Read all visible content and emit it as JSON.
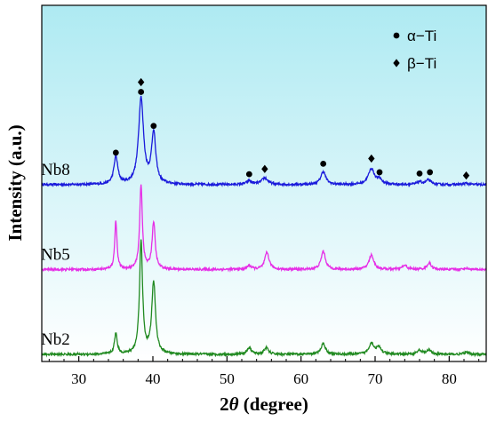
{
  "chart_data": {
    "type": "line",
    "title": "",
    "xlabel_prefix": "2",
    "xlabel_symbol": "θ",
    "xlabel_suffix": " (degree)",
    "ylabel": "Intensity (a.u.)",
    "xlim": [
      25,
      85
    ],
    "xticks": [
      30,
      40,
      50,
      60,
      70,
      80
    ],
    "ytick_labels": false,
    "legend": {
      "placement": "top-right",
      "entries": [
        {
          "marker": "circle",
          "label": "α−Ti"
        },
        {
          "marker": "diamond",
          "label": "β−Ti"
        }
      ]
    },
    "background_gradient": [
      "#aeeaf2",
      "#ffffff"
    ],
    "series": [
      {
        "name": "Nb8",
        "color": "#1a1adb",
        "offset": 2.6,
        "peaks": [
          {
            "x": 35.0,
            "h": 0.42,
            "w": 0.32
          },
          {
            "x": 38.4,
            "h": 1.32,
            "w": 0.4
          },
          {
            "x": 40.1,
            "h": 0.78,
            "w": 0.34
          },
          {
            "x": 53.0,
            "h": 0.06,
            "w": 0.4
          },
          {
            "x": 55.1,
            "h": 0.1,
            "w": 0.5
          },
          {
            "x": 63.0,
            "h": 0.2,
            "w": 0.4
          },
          {
            "x": 69.5,
            "h": 0.24,
            "w": 0.5
          },
          {
            "x": 70.6,
            "h": 0.07,
            "w": 0.4
          },
          {
            "x": 76.0,
            "h": 0.04,
            "w": 0.4
          },
          {
            "x": 77.2,
            "h": 0.07,
            "w": 0.4
          },
          {
            "x": 82.3,
            "h": 0.02,
            "w": 0.4
          }
        ]
      },
      {
        "name": "Nb5",
        "color": "#e62ee6",
        "offset": 1.3,
        "peaks": [
          {
            "x": 35.0,
            "h": 0.75,
            "w": 0.18
          },
          {
            "x": 38.4,
            "h": 1.28,
            "w": 0.22
          },
          {
            "x": 40.1,
            "h": 0.72,
            "w": 0.25
          },
          {
            "x": 53.0,
            "h": 0.06,
            "w": 0.35
          },
          {
            "x": 55.4,
            "h": 0.26,
            "w": 0.35
          },
          {
            "x": 63.0,
            "h": 0.28,
            "w": 0.35
          },
          {
            "x": 69.5,
            "h": 0.22,
            "w": 0.4
          },
          {
            "x": 74.0,
            "h": 0.06,
            "w": 0.4
          },
          {
            "x": 77.3,
            "h": 0.1,
            "w": 0.35
          },
          {
            "x": 82.3,
            "h": 0.02,
            "w": 0.4
          }
        ]
      },
      {
        "name": "Nb2",
        "color": "#218a21",
        "offset": 0.0,
        "peaks": [
          {
            "x": 35.0,
            "h": 0.32,
            "w": 0.22
          },
          {
            "x": 38.4,
            "h": 1.72,
            "w": 0.25
          },
          {
            "x": 40.1,
            "h": 1.1,
            "w": 0.3
          },
          {
            "x": 53.0,
            "h": 0.1,
            "w": 0.35
          },
          {
            "x": 55.3,
            "h": 0.1,
            "w": 0.35
          },
          {
            "x": 63.0,
            "h": 0.17,
            "w": 0.35
          },
          {
            "x": 69.5,
            "h": 0.17,
            "w": 0.4
          },
          {
            "x": 70.5,
            "h": 0.1,
            "w": 0.4
          },
          {
            "x": 76.0,
            "h": 0.06,
            "w": 0.4
          },
          {
            "x": 77.3,
            "h": 0.06,
            "w": 0.4
          },
          {
            "x": 82.3,
            "h": 0.03,
            "w": 0.4
          }
        ]
      }
    ],
    "annotations": [
      {
        "x": 35.0,
        "y": 3.09,
        "marker": "circle"
      },
      {
        "x": 38.4,
        "y": 4.02,
        "marker": "circle"
      },
      {
        "x": 38.4,
        "y": 4.17,
        "marker": "diamond"
      },
      {
        "x": 40.1,
        "y": 3.5,
        "marker": "circle"
      },
      {
        "x": 53.0,
        "y": 2.76,
        "marker": "circle"
      },
      {
        "x": 55.1,
        "y": 2.84,
        "marker": "diamond"
      },
      {
        "x": 63.0,
        "y": 2.92,
        "marker": "circle"
      },
      {
        "x": 69.5,
        "y": 3.0,
        "marker": "diamond"
      },
      {
        "x": 70.6,
        "y": 2.79,
        "marker": "circle"
      },
      {
        "x": 76.0,
        "y": 2.77,
        "marker": "circle"
      },
      {
        "x": 77.4,
        "y": 2.79,
        "marker": "circle"
      },
      {
        "x": 82.3,
        "y": 2.74,
        "marker": "diamond"
      }
    ]
  }
}
